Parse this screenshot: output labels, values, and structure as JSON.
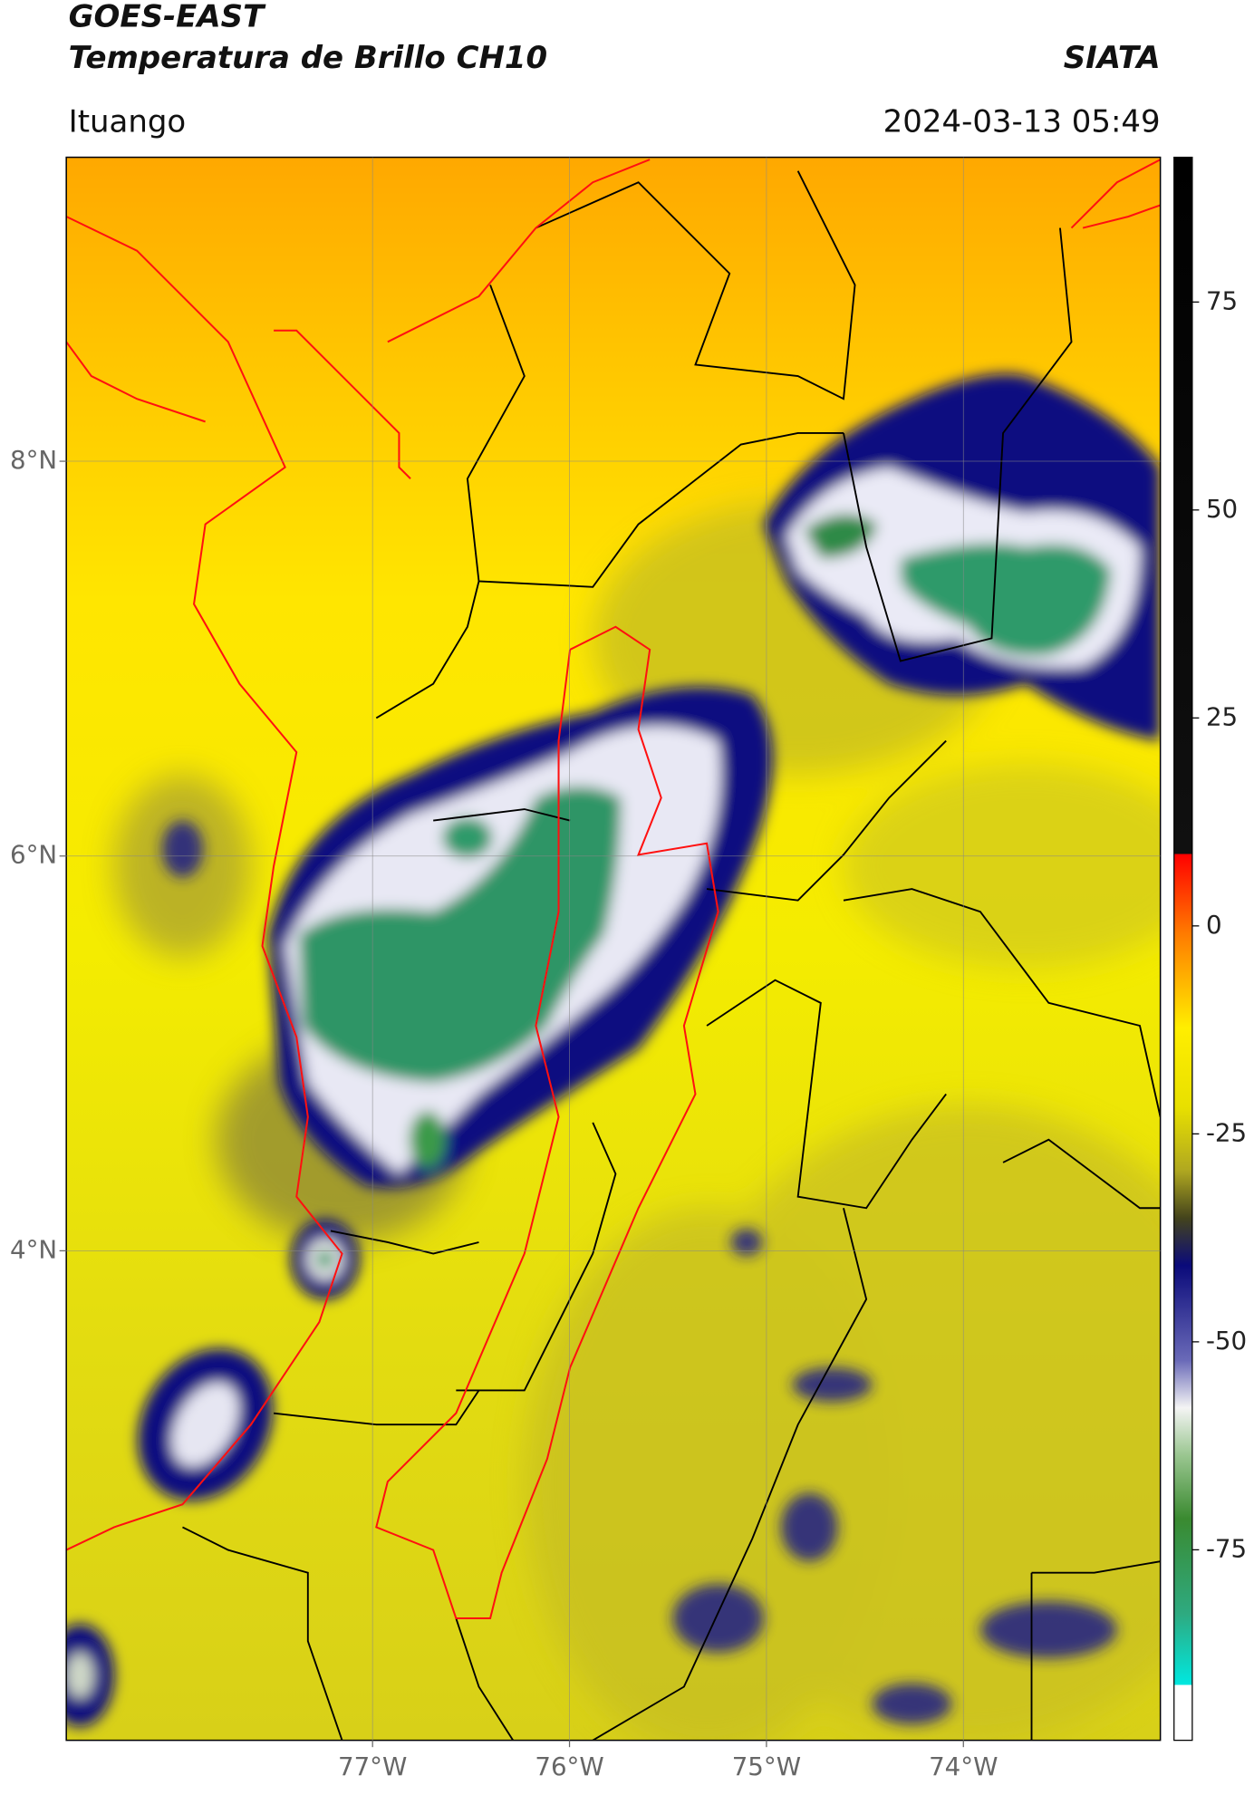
{
  "header": {
    "title": "GOES-EAST",
    "subtitle": "Temperatura de Brillo CH10",
    "credit": "SIATA",
    "location": "Ituango",
    "timestamp": "2024-03-13 05:49"
  },
  "map": {
    "xlim": [
      -78.555,
      -73.0
    ],
    "ylim": [
      1.52,
      9.54
    ],
    "xticks": [
      {
        "value": -77,
        "label": "77°W"
      },
      {
        "value": -76,
        "label": "76°W"
      },
      {
        "value": -75,
        "label": "75°W"
      },
      {
        "value": -74,
        "label": "74°W"
      }
    ],
    "yticks": [
      {
        "value": 8,
        "label": "8°N"
      },
      {
        "value": 6,
        "label": "6°N"
      },
      {
        "value": 4,
        "label": "4°N"
      }
    ],
    "grid": true
  },
  "colorbar": {
    "lim": [
      -97.9,
      92.4
    ],
    "ticks": [
      75,
      50,
      25,
      0,
      -25,
      -50,
      -75
    ]
  }
}
